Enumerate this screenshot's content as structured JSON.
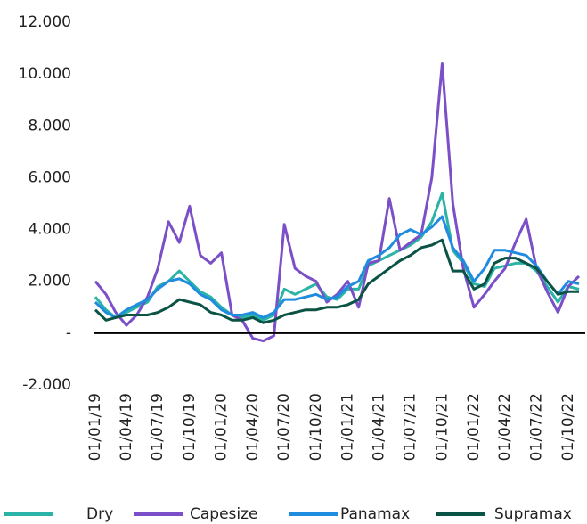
{
  "chart_data": {
    "type": "line",
    "x": [
      "01/01/19",
      "01/02/19",
      "01/03/19",
      "01/04/19",
      "01/05/19",
      "01/06/19",
      "01/07/19",
      "01/08/19",
      "01/09/19",
      "01/10/19",
      "01/11/19",
      "01/12/19",
      "01/01/20",
      "01/02/20",
      "01/03/20",
      "01/04/20",
      "01/05/20",
      "01/06/20",
      "01/07/20",
      "01/08/20",
      "01/09/20",
      "01/10/20",
      "01/11/20",
      "01/12/20",
      "01/01/21",
      "01/02/21",
      "01/03/21",
      "01/04/21",
      "01/05/21",
      "01/06/21",
      "01/07/21",
      "01/08/21",
      "01/09/21",
      "01/10/21",
      "01/11/21",
      "01/12/21",
      "01/01/22",
      "01/02/22",
      "01/03/22",
      "01/04/22",
      "01/05/22",
      "01/06/22",
      "01/07/22",
      "01/08/22",
      "01/09/22",
      "01/10/22",
      "01/11/22"
    ],
    "series": [
      {
        "name": "Dry",
        "color": "#2ab3a6",
        "values": [
          1400,
          900,
          600,
          800,
          1000,
          1200,
          1800,
          2000,
          2400,
          2000,
          1600,
          1400,
          1000,
          700,
          600,
          700,
          500,
          700,
          1700,
          1500,
          1700,
          1900,
          1400,
          1300,
          1700,
          1700,
          2600,
          2800,
          3000,
          3200,
          3400,
          3700,
          4300,
          5400,
          3200,
          2700,
          1900,
          1800,
          2500,
          2600,
          2700,
          2700,
          2400,
          1800,
          1200,
          1800,
          1700
        ]
      },
      {
        "name": "Capesize",
        "color": "#7b4fc7",
        "values": [
          2000,
          1500,
          800,
          300,
          700,
          1400,
          2500,
          4300,
          3500,
          4900,
          3000,
          2700,
          3100,
          700,
          500,
          -200,
          -300,
          -100,
          4200,
          2500,
          2200,
          2000,
          1200,
          1500,
          2000,
          1000,
          2700,
          2800,
          5200,
          3200,
          3500,
          3800,
          6000,
          10400,
          5000,
          2500,
          1000,
          1500,
          2000,
          2500,
          3500,
          4400,
          2500,
          1600,
          800,
          1800,
          2200
        ]
      },
      {
        "name": "Panamax",
        "color": "#1f8ce0",
        "values": [
          1200,
          800,
          600,
          900,
          1100,
          1300,
          1700,
          2000,
          2100,
          1900,
          1500,
          1300,
          900,
          700,
          700,
          800,
          600,
          800,
          1300,
          1300,
          1400,
          1500,
          1300,
          1400,
          1800,
          2000,
          2800,
          3000,
          3300,
          3800,
          4000,
          3800,
          4100,
          4500,
          3300,
          2800,
          2000,
          2500,
          3200,
          3200,
          3100,
          3000,
          2600,
          2000,
          1500,
          2000,
          1900
        ]
      },
      {
        "name": "Supramax",
        "color": "#0b5345",
        "values": [
          900,
          500,
          600,
          700,
          700,
          700,
          800,
          1000,
          1300,
          1200,
          1100,
          800,
          700,
          500,
          500,
          600,
          400,
          500,
          700,
          800,
          900,
          900,
          1000,
          1000,
          1100,
          1300,
          1900,
          2200,
          2500,
          2800,
          3000,
          3300,
          3400,
          3600,
          2400,
          2400,
          1700,
          1900,
          2700,
          2900,
          2900,
          2700,
          2500,
          2000,
          1500,
          1600,
          1600
        ]
      }
    ],
    "xticks": [
      "01/01/19",
      "01/04/19",
      "01/07/19",
      "01/10/19",
      "01/01/20",
      "01/04/20",
      "01/07/20",
      "01/10/20",
      "01/01/21",
      "01/04/21",
      "01/07/21",
      "01/10/21",
      "01/01/22",
      "01/04/22",
      "01/07/22",
      "01/10/22"
    ],
    "ylim": [
      -2000,
      12000
    ],
    "yticks": [
      {
        "value": -2000,
        "label": "-2.000"
      },
      {
        "value": 0,
        "label": "-"
      },
      {
        "value": 2000,
        "label": "2.000"
      },
      {
        "value": 4000,
        "label": "4.000"
      },
      {
        "value": 6000,
        "label": "6.000"
      },
      {
        "value": 8000,
        "label": "8.000"
      },
      {
        "value": 10000,
        "label": "10.000"
      },
      {
        "value": 12000,
        "label": "12.000"
      }
    ],
    "grid": false,
    "legend": "bottom"
  }
}
